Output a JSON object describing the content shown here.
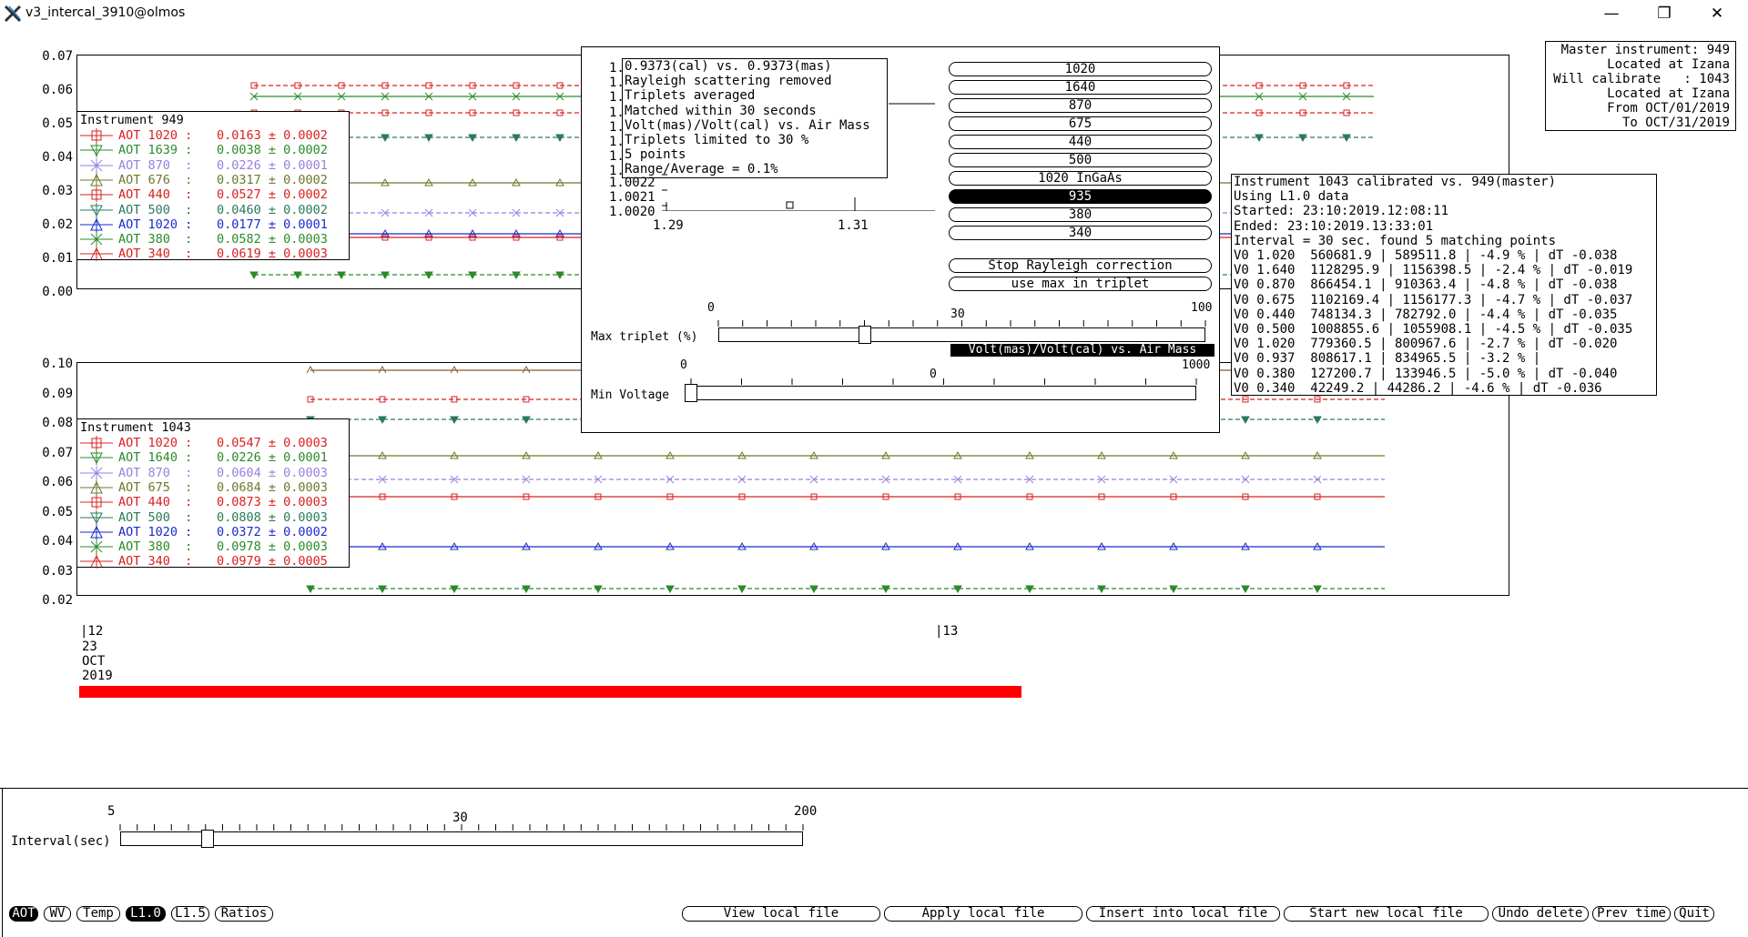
{
  "window": {
    "title": "v3_intercal_3910@olmos",
    "min": "—",
    "restore": "❐",
    "close": "✕"
  },
  "plot1": {
    "yticks": [
      "0.07",
      "0.06",
      "0.05",
      "0.04",
      "0.03",
      "0.02",
      "0.01",
      "0.00"
    ],
    "legend": {
      "title": "Instrument 949",
      "rows": [
        {
          "label": "AOT 1020 :",
          "value": "0.0163 ± 0.0002",
          "color": "#d92020",
          "sym": "square"
        },
        {
          "label": "AOT 1639 :",
          "value": "0.0038 ± 0.0002",
          "color": "#2a8a2a",
          "sym": "tri-down"
        },
        {
          "label": "AOT 870  :",
          "value": "0.0226 ± 0.0001",
          "color": "#9a7fe0",
          "sym": "x"
        },
        {
          "label": "AOT 676  :",
          "value": "0.0317 ± 0.0002",
          "color": "#6b7a2a",
          "sym": "tri-up"
        },
        {
          "label": "AOT 440  :",
          "value": "0.0527 ± 0.0002",
          "color": "#d92020",
          "sym": "square"
        },
        {
          "label": "AOT 500  :",
          "value": "0.0460 ± 0.0002",
          "color": "#2a7a5a",
          "sym": "tri-down"
        },
        {
          "label": "AOT 1020 :",
          "value": "0.0177 ± 0.0001",
          "color": "#1a2ad0",
          "sym": "tri-up"
        },
        {
          "label": "AOT 380  :",
          "value": "0.0582 ± 0.0003",
          "color": "#2a8a2a",
          "sym": "x"
        },
        {
          "label": "AOT 340  :",
          "value": "0.0619 ± 0.0003",
          "color": "#d92020",
          "sym": "caret"
        }
      ]
    }
  },
  "plot2": {
    "yticks": [
      "0.10",
      "0.09",
      "0.08",
      "0.07",
      "0.06",
      "0.05",
      "0.04",
      "0.03",
      "0.02"
    ],
    "legend": {
      "title": "Instrument 1043",
      "rows": [
        {
          "label": "AOT 1020 :",
          "value": "0.0547 ± 0.0003",
          "color": "#d92020",
          "sym": "square"
        },
        {
          "label": "AOT 1640 :",
          "value": "0.0226 ± 0.0001",
          "color": "#2a8a2a",
          "sym": "tri-down"
        },
        {
          "label": "AOT 870  :",
          "value": "0.0604 ± 0.0003",
          "color": "#9a7fe0",
          "sym": "x"
        },
        {
          "label": "AOT 675  :",
          "value": "0.0684 ± 0.0003",
          "color": "#6b7a2a",
          "sym": "tri-up"
        },
        {
          "label": "AOT 440  :",
          "value": "0.0873 ± 0.0003",
          "color": "#d92020",
          "sym": "square"
        },
        {
          "label": "AOT 500  :",
          "value": "0.0808 ± 0.0003",
          "color": "#2a7a5a",
          "sym": "tri-down"
        },
        {
          "label": "AOT 1020 :",
          "value": "0.0372 ± 0.0002",
          "color": "#1a2ad0",
          "sym": "tri-up"
        },
        {
          "label": "AOT 380  :",
          "value": "0.0978 ± 0.0003",
          "color": "#2a8a2a",
          "sym": "x"
        },
        {
          "label": "AOT 340  :",
          "value": "0.0979 ± 0.0005",
          "color": "#d92020",
          "sym": "caret"
        }
      ]
    }
  },
  "xaxis": {
    "tick1": "|12",
    "tick1_lines": [
      "23",
      "OCT",
      "2019"
    ],
    "tick2": "|13"
  },
  "master": {
    "lines": [
      "Master instrument: 949",
      "Located at Izana",
      "Will calibrate   : 1043",
      "Located at Izana",
      "From OCT/01/2019",
      "To OCT/31/2019"
    ]
  },
  "popup": {
    "info_lines": [
      "0.9373(cal) vs. 0.9373(mas)",
      "Rayleigh scattering removed",
      "Triplets averaged",
      "Matched within 30 seconds",
      "Volt(mas)/Volt(cal) vs. Air Mass",
      "Triplets limited to 30 %",
      "5 points",
      "Range/Average = 0.1%"
    ],
    "mini_ytick_prefix": [
      "1.",
      "1.",
      "1.",
      "1.",
      "1.",
      "1.",
      "1.",
      "1."
    ],
    "mini_yticks": [
      "1.0022",
      "1.0021",
      "1.0020"
    ],
    "mini_xticks": [
      "1.29",
      "1.31"
    ],
    "wavelengths": [
      "1020",
      "1640",
      "870",
      "675",
      "440",
      "500",
      "1020 InGaAs",
      "935",
      "380",
      "340"
    ],
    "selected": "935",
    "rayleigh_btn": "Stop Rayleigh correction",
    "max_btn": "use max in triplet",
    "max_triplet": {
      "label": "Max triplet (%)",
      "min": "0",
      "mid": "30",
      "max": "100",
      "value": 30
    },
    "plot_label": "Volt(mas)/Volt(cal) vs. Air Mass",
    "min_voltage": {
      "label": "Min Voltage",
      "min": "0",
      "mid": "0",
      "max": "1000",
      "value": 0
    }
  },
  "calib": {
    "lines": [
      "Instrument 1043 calibrated vs. 949(master)",
      "Using L1.0 data",
      "Started: 23:10:2019.12:08:11",
      "Ended: 23:10:2019.13:33:01",
      "Interval = 30 sec. found 5 matching points",
      "V0 1.020  560681.9 | 589511.8 | -4.9 % | dT -0.038",
      "V0 1.640  1128295.9 | 1156398.5 | -2.4 % | dT -0.019",
      "V0 0.870  866454.1 | 910363.4 | -4.8 % | dT -0.038",
      "V0 0.675  1102169.4 | 1156177.3 | -4.7 % | dT -0.037",
      "V0 0.440  748134.3 | 782792.0 | -4.4 % | dT -0.035",
      "V0 0.500  1008855.6 | 1055908.1 | -4.5 % | dT -0.035",
      "V0 1.020  779360.5 | 800967.6 | -2.7 % | dT -0.020",
      "V0 0.937  808617.1 | 834965.5 | -3.2 % |",
      "V0 0.380  127200.7 | 133946.5 | -5.0 % | dT -0.040",
      "V0 0.340  42249.2 | 44286.2 | -4.6 % | dT -0.036"
    ]
  },
  "interval": {
    "label": "Interval(sec)",
    "min": "5",
    "mid": "30",
    "max": "200",
    "value": 30
  },
  "bottom": {
    "left": [
      "AOT",
      "WV",
      "Temp",
      "L1.0",
      "L1.5",
      "Ratios"
    ],
    "left_selected": [
      "AOT",
      "L1.0"
    ],
    "right": [
      "View local file",
      "Apply local file",
      "Insert into local file",
      "Start new local file",
      "Undo delete",
      "Prev time",
      "Quit"
    ]
  },
  "colors": {
    "selection_bar": "#ff0000"
  }
}
